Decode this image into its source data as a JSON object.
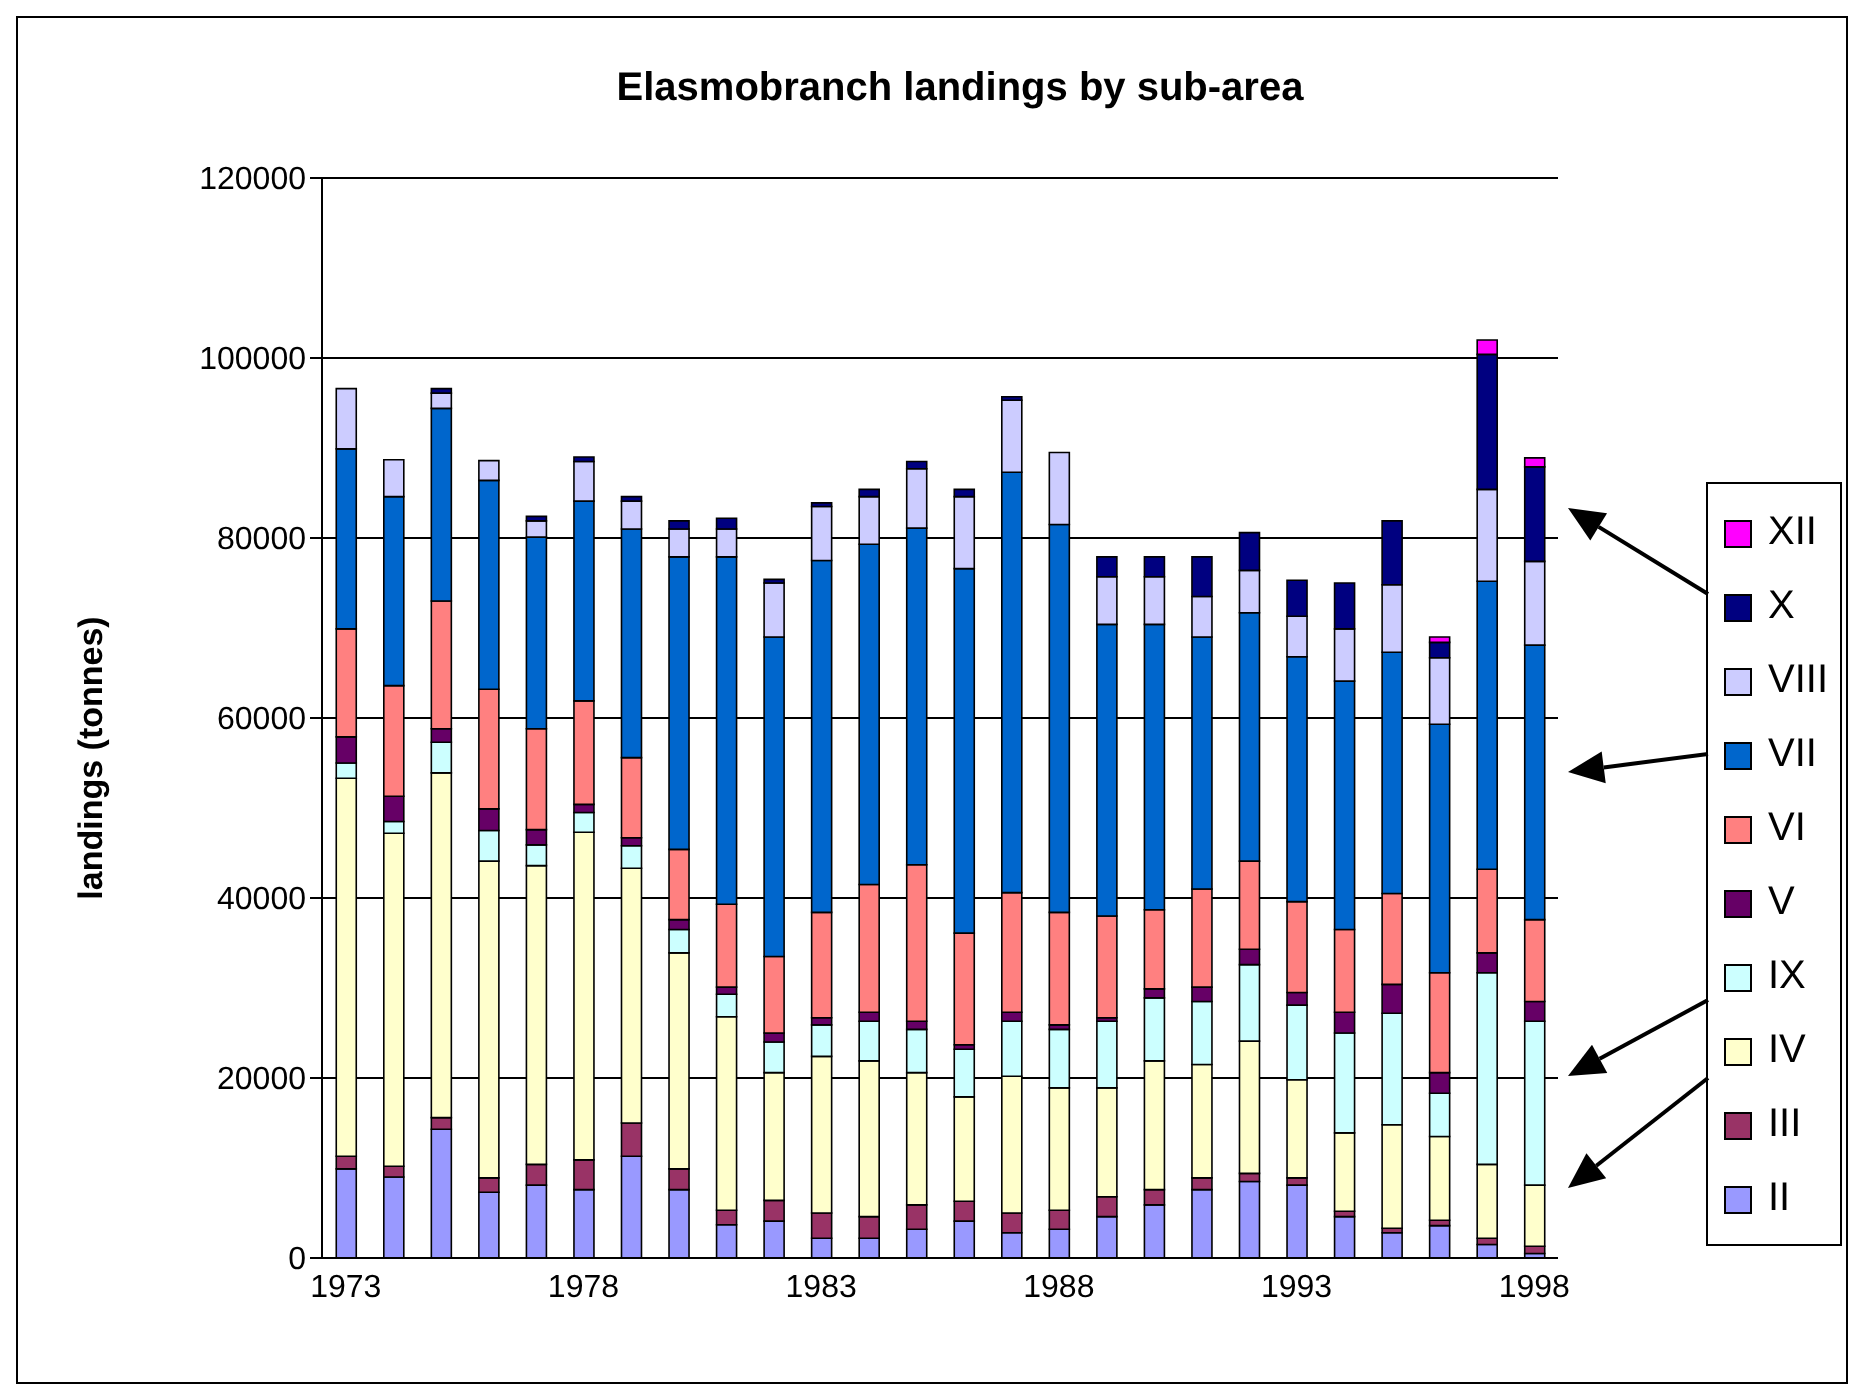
{
  "chart_data": {
    "type": "bar",
    "title": "Elasmobranch landings by sub-area",
    "ylabel": "landings (tonnes)",
    "stacked": true,
    "categories": [
      "1973",
      null,
      null,
      null,
      null,
      "1978",
      null,
      null,
      null,
      null,
      "1983",
      null,
      null,
      null,
      null,
      "1988",
      null,
      null,
      null,
      null,
      "1993",
      null,
      null,
      null,
      null,
      "1998"
    ],
    "series": [
      {
        "name": "II",
        "color": "#9999ff",
        "values": [
          9900,
          9000,
          14300,
          7300,
          8100,
          7600,
          11300,
          7600,
          3700,
          4100,
          2200,
          2200,
          3200,
          4100,
          2800,
          3200,
          4600,
          5900,
          7600,
          8500,
          8100,
          4600,
          2800,
          3600,
          1500,
          500
        ]
      },
      {
        "name": "III",
        "color": "#993366",
        "values": [
          1400,
          1200,
          1300,
          1600,
          2300,
          3300,
          3700,
          2300,
          1600,
          2300,
          2800,
          2400,
          2700,
          2200,
          2200,
          2100,
          2200,
          1700,
          1300,
          900,
          800,
          600,
          500,
          600,
          700,
          800
        ]
      },
      {
        "name": "IV",
        "color": "#ffffcc",
        "values": [
          42000,
          37000,
          38300,
          35200,
          33200,
          36400,
          28300,
          24000,
          21500,
          14200,
          17400,
          17300,
          14700,
          11600,
          15200,
          13600,
          12100,
          14300,
          12600,
          14700,
          10900,
          8700,
          11500,
          9300,
          8200,
          6800
        ]
      },
      {
        "name": "IX",
        "color": "#ccffff",
        "values": [
          1700,
          1300,
          3400,
          3400,
          2300,
          2200,
          2500,
          2600,
          2500,
          3400,
          3500,
          4400,
          4800,
          5300,
          6100,
          6500,
          7400,
          7000,
          7000,
          8500,
          8300,
          11100,
          12400,
          4800,
          21300,
          18200
        ]
      },
      {
        "name": "V",
        "color": "#660066",
        "values": [
          2900,
          2800,
          1500,
          2400,
          1700,
          900,
          900,
          1100,
          800,
          1000,
          800,
          1000,
          900,
          500,
          1000,
          500,
          400,
          1000,
          1600,
          1700,
          1400,
          2300,
          3200,
          2300,
          2200,
          2200
        ]
      },
      {
        "name": "VI",
        "color": "#ff8080",
        "values": [
          12000,
          12300,
          14200,
          13300,
          11200,
          11500,
          8900,
          7800,
          9200,
          8500,
          11700,
          14200,
          17400,
          12400,
          13300,
          12500,
          11300,
          8800,
          10900,
          9800,
          10100,
          9200,
          10100,
          11100,
          9300,
          9100
        ]
      },
      {
        "name": "VII",
        "color": "#0066cc",
        "values": [
          20000,
          21000,
          21400,
          23200,
          21300,
          22200,
          25400,
          32500,
          38600,
          35500,
          39100,
          37800,
          37400,
          40500,
          46700,
          43100,
          32400,
          31700,
          28000,
          27600,
          27200,
          27600,
          26800,
          27600,
          32000,
          30500
        ]
      },
      {
        "name": "VIII",
        "color": "#ccccff",
        "values": [
          6700,
          4100,
          1700,
          2200,
          1800,
          4400,
          3100,
          3100,
          3100,
          6000,
          6000,
          5300,
          6600,
          8000,
          8000,
          8000,
          5300,
          5300,
          4500,
          4700,
          4500,
          5800,
          7500,
          7400,
          10200,
          9300
        ]
      },
      {
        "name": "X",
        "color": "#000080",
        "values": [
          null,
          null,
          500,
          null,
          500,
          500,
          500,
          900,
          1200,
          400,
          400,
          800,
          800,
          800,
          400,
          null,
          2200,
          2200,
          4400,
          4200,
          4000,
          5100,
          7100,
          1700,
          15000,
          10500
        ]
      },
      {
        "name": "XII",
        "color": "#ff00ff",
        "values": [
          null,
          null,
          null,
          null,
          null,
          null,
          null,
          null,
          null,
          null,
          null,
          null,
          null,
          null,
          null,
          null,
          null,
          null,
          null,
          null,
          null,
          null,
          null,
          600,
          1600,
          1000
        ]
      }
    ],
    "ylim": [
      0,
      120000
    ],
    "yticks": [
      0,
      20000,
      40000,
      60000,
      80000,
      100000,
      120000
    ],
    "grid": "y",
    "legend": "right"
  }
}
